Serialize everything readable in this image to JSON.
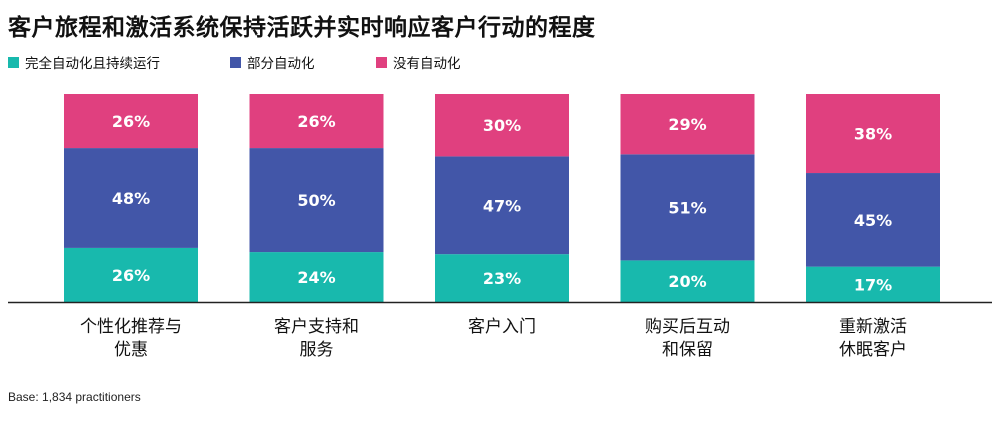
{
  "title": "客户旅程和激活系统保持活跃并实时响应客户行动的程度",
  "legend": [
    {
      "label": "完全自动化且持续运行",
      "color": "#18b9ad"
    },
    {
      "label": "部分自动化",
      "color": "#4256a8"
    },
    {
      "label": "没有自动化",
      "color": "#e0407f"
    }
  ],
  "footnote": "Base: 1,834 practitioners",
  "chart_data": {
    "type": "bar",
    "stacked": true,
    "percent": true,
    "categories": [
      [
        "个性化推荐与",
        "优惠"
      ],
      [
        "客户支持和",
        "服务"
      ],
      [
        "客户入门"
      ],
      [
        "购买后互动",
        "和保留"
      ],
      [
        "重新激活",
        "休眠客户"
      ]
    ],
    "series": [
      {
        "name": "完全自动化且持续运行",
        "color": "#18b9ad",
        "values": [
          26,
          24,
          23,
          20,
          17
        ],
        "labels": [
          "26%",
          "24%",
          "23%",
          "20%",
          "17%"
        ]
      },
      {
        "name": "部分自动化",
        "color": "#4256a8",
        "values": [
          48,
          50,
          47,
          51,
          45
        ],
        "labels": [
          "48%",
          "50%",
          "47%",
          "51%",
          "45%"
        ]
      },
      {
        "name": "没有自动化",
        "color": "#e0407f",
        "values": [
          26,
          26,
          30,
          29,
          38
        ],
        "labels": [
          "26%",
          "26%",
          "30%",
          "29%",
          "38%"
        ]
      }
    ],
    "ylim": [
      0,
      100
    ],
    "grid": false
  }
}
